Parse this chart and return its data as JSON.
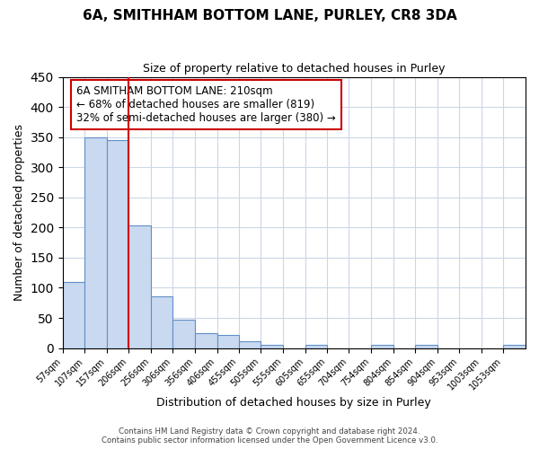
{
  "title": "6A, SMITHHAM BOTTOM LANE, PURLEY, CR8 3DA",
  "subtitle": "Size of property relative to detached houses in Purley",
  "xlabel": "Distribution of detached houses by size in Purley",
  "ylabel": "Number of detached properties",
  "bar_color": "#c9d9f0",
  "bar_edge_color": "#6090c8",
  "bar_heights": [
    110,
    350,
    345,
    204,
    86,
    47,
    25,
    22,
    11,
    6,
    0,
    5,
    0,
    0,
    5,
    0,
    5,
    0,
    0,
    0,
    5
  ],
  "tick_positions": [
    57,
    107,
    157,
    206,
    256,
    306,
    356,
    406,
    455,
    505,
    555,
    605,
    655,
    704,
    754,
    804,
    854,
    904,
    953,
    1003,
    1053
  ],
  "bin_labels": [
    "57sqm",
    "107sqm",
    "157sqm",
    "206sqm",
    "256sqm",
    "306sqm",
    "356sqm",
    "406sqm",
    "455sqm",
    "505sqm",
    "555sqm",
    "605sqm",
    "655sqm",
    "704sqm",
    "754sqm",
    "804sqm",
    "854sqm",
    "904sqm",
    "953sqm",
    "1003sqm",
    "1053sqm"
  ],
  "vline_x": 206,
  "vline_color": "#cc0000",
  "ylim": [
    0,
    450
  ],
  "yticks": [
    0,
    50,
    100,
    150,
    200,
    250,
    300,
    350,
    400,
    450
  ],
  "annotation_text": "6A SMITHAM BOTTOM LANE: 210sqm\n← 68% of detached houses are smaller (819)\n32% of semi-detached houses are larger (380) →",
  "annotation_box_edge": "#cc0000",
  "footer_text": "Contains HM Land Registry data © Crown copyright and database right 2024.\nContains public sector information licensed under the Open Government Licence v3.0.",
  "background_color": "#ffffff",
  "grid_color": "#ccd5e8"
}
